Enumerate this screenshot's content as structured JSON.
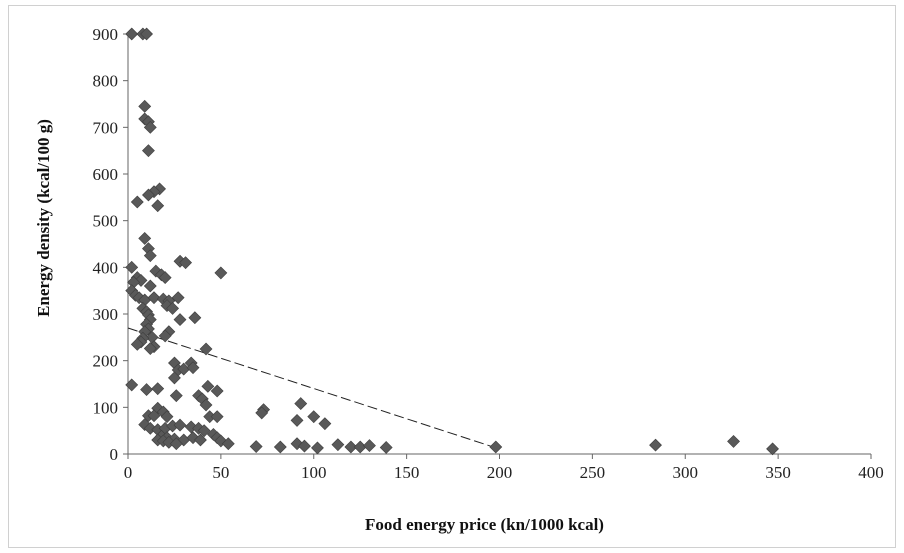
{
  "chart_data": {
    "type": "scatter",
    "title": "",
    "xlabel": "Food energy price (kn/1000 kcal)",
    "ylabel": "Energy density (kcal/100 g)",
    "xlim": [
      0,
      400
    ],
    "ylim": [
      0,
      900
    ],
    "x_ticks": [
      0,
      50,
      100,
      150,
      200,
      250,
      300,
      350,
      400
    ],
    "y_ticks": [
      0,
      100,
      200,
      300,
      400,
      500,
      600,
      700,
      800,
      900
    ],
    "grid": false,
    "legend": "none",
    "marker": "diamond",
    "marker_color": "#595959",
    "trendline": {
      "style": "dashed",
      "color": "#222222",
      "x": [
        0,
        199
      ],
      "y": [
        270,
        12
      ]
    },
    "points": [
      [
        2,
        900
      ],
      [
        8,
        900
      ],
      [
        10,
        900
      ],
      [
        9,
        745
      ],
      [
        9,
        718
      ],
      [
        11,
        712
      ],
      [
        12,
        700
      ],
      [
        11,
        650
      ],
      [
        17,
        568
      ],
      [
        14,
        562
      ],
      [
        11,
        555
      ],
      [
        16,
        532
      ],
      [
        5,
        540
      ],
      [
        9,
        462
      ],
      [
        11,
        440
      ],
      [
        12,
        425
      ],
      [
        28,
        413
      ],
      [
        31,
        410
      ],
      [
        50,
        388
      ],
      [
        2,
        400
      ],
      [
        15,
        392
      ],
      [
        18,
        384
      ],
      [
        20,
        378
      ],
      [
        5,
        378
      ],
      [
        7,
        372
      ],
      [
        3,
        368
      ],
      [
        12,
        360
      ],
      [
        2,
        350
      ],
      [
        4,
        340
      ],
      [
        6,
        335
      ],
      [
        9,
        330
      ],
      [
        14,
        335
      ],
      [
        19,
        332
      ],
      [
        22,
        328
      ],
      [
        27,
        335
      ],
      [
        21,
        318
      ],
      [
        24,
        312
      ],
      [
        8,
        312
      ],
      [
        10,
        305
      ],
      [
        11,
        298
      ],
      [
        12,
        288
      ],
      [
        28,
        288
      ],
      [
        36,
        292
      ],
      [
        10,
        278
      ],
      [
        11,
        268
      ],
      [
        9,
        262
      ],
      [
        22,
        262
      ],
      [
        13,
        250
      ],
      [
        8,
        248
      ],
      [
        7,
        240
      ],
      [
        5,
        235
      ],
      [
        14,
        230
      ],
      [
        12,
        226
      ],
      [
        20,
        253
      ],
      [
        42,
        225
      ],
      [
        25,
        195
      ],
      [
        27,
        180
      ],
      [
        30,
        182
      ],
      [
        34,
        195
      ],
      [
        35,
        185
      ],
      [
        25,
        163
      ],
      [
        2,
        148
      ],
      [
        10,
        138
      ],
      [
        16,
        140
      ],
      [
        26,
        125
      ],
      [
        38,
        125
      ],
      [
        43,
        145
      ],
      [
        48,
        135
      ],
      [
        40,
        118
      ],
      [
        42,
        105
      ],
      [
        16,
        98
      ],
      [
        19,
        90
      ],
      [
        11,
        82
      ],
      [
        21,
        80
      ],
      [
        14,
        82
      ],
      [
        44,
        80
      ],
      [
        48,
        80
      ],
      [
        73,
        95
      ],
      [
        72,
        88
      ],
      [
        9,
        63
      ],
      [
        12,
        55
      ],
      [
        16,
        52
      ],
      [
        20,
        55
      ],
      [
        24,
        60
      ],
      [
        28,
        62
      ],
      [
        34,
        58
      ],
      [
        38,
        55
      ],
      [
        41,
        50
      ],
      [
        46,
        42
      ],
      [
        18,
        38
      ],
      [
        21,
        35
      ],
      [
        25,
        32
      ],
      [
        30,
        30
      ],
      [
        35,
        35
      ],
      [
        39,
        30
      ],
      [
        16,
        30
      ],
      [
        19,
        28
      ],
      [
        22,
        25
      ],
      [
        26,
        22
      ],
      [
        48,
        35
      ],
      [
        50,
        28
      ],
      [
        54,
        22
      ],
      [
        93,
        108
      ],
      [
        100,
        80
      ],
      [
        106,
        65
      ],
      [
        91,
        72
      ],
      [
        69,
        16
      ],
      [
        82,
        15
      ],
      [
        91,
        22
      ],
      [
        95,
        17
      ],
      [
        102,
        13
      ],
      [
        113,
        20
      ],
      [
        120,
        15
      ],
      [
        125,
        15
      ],
      [
        130,
        18
      ],
      [
        139,
        14
      ],
      [
        198,
        15
      ],
      [
        284,
        19
      ],
      [
        326,
        27
      ],
      [
        347,
        11
      ]
    ]
  }
}
